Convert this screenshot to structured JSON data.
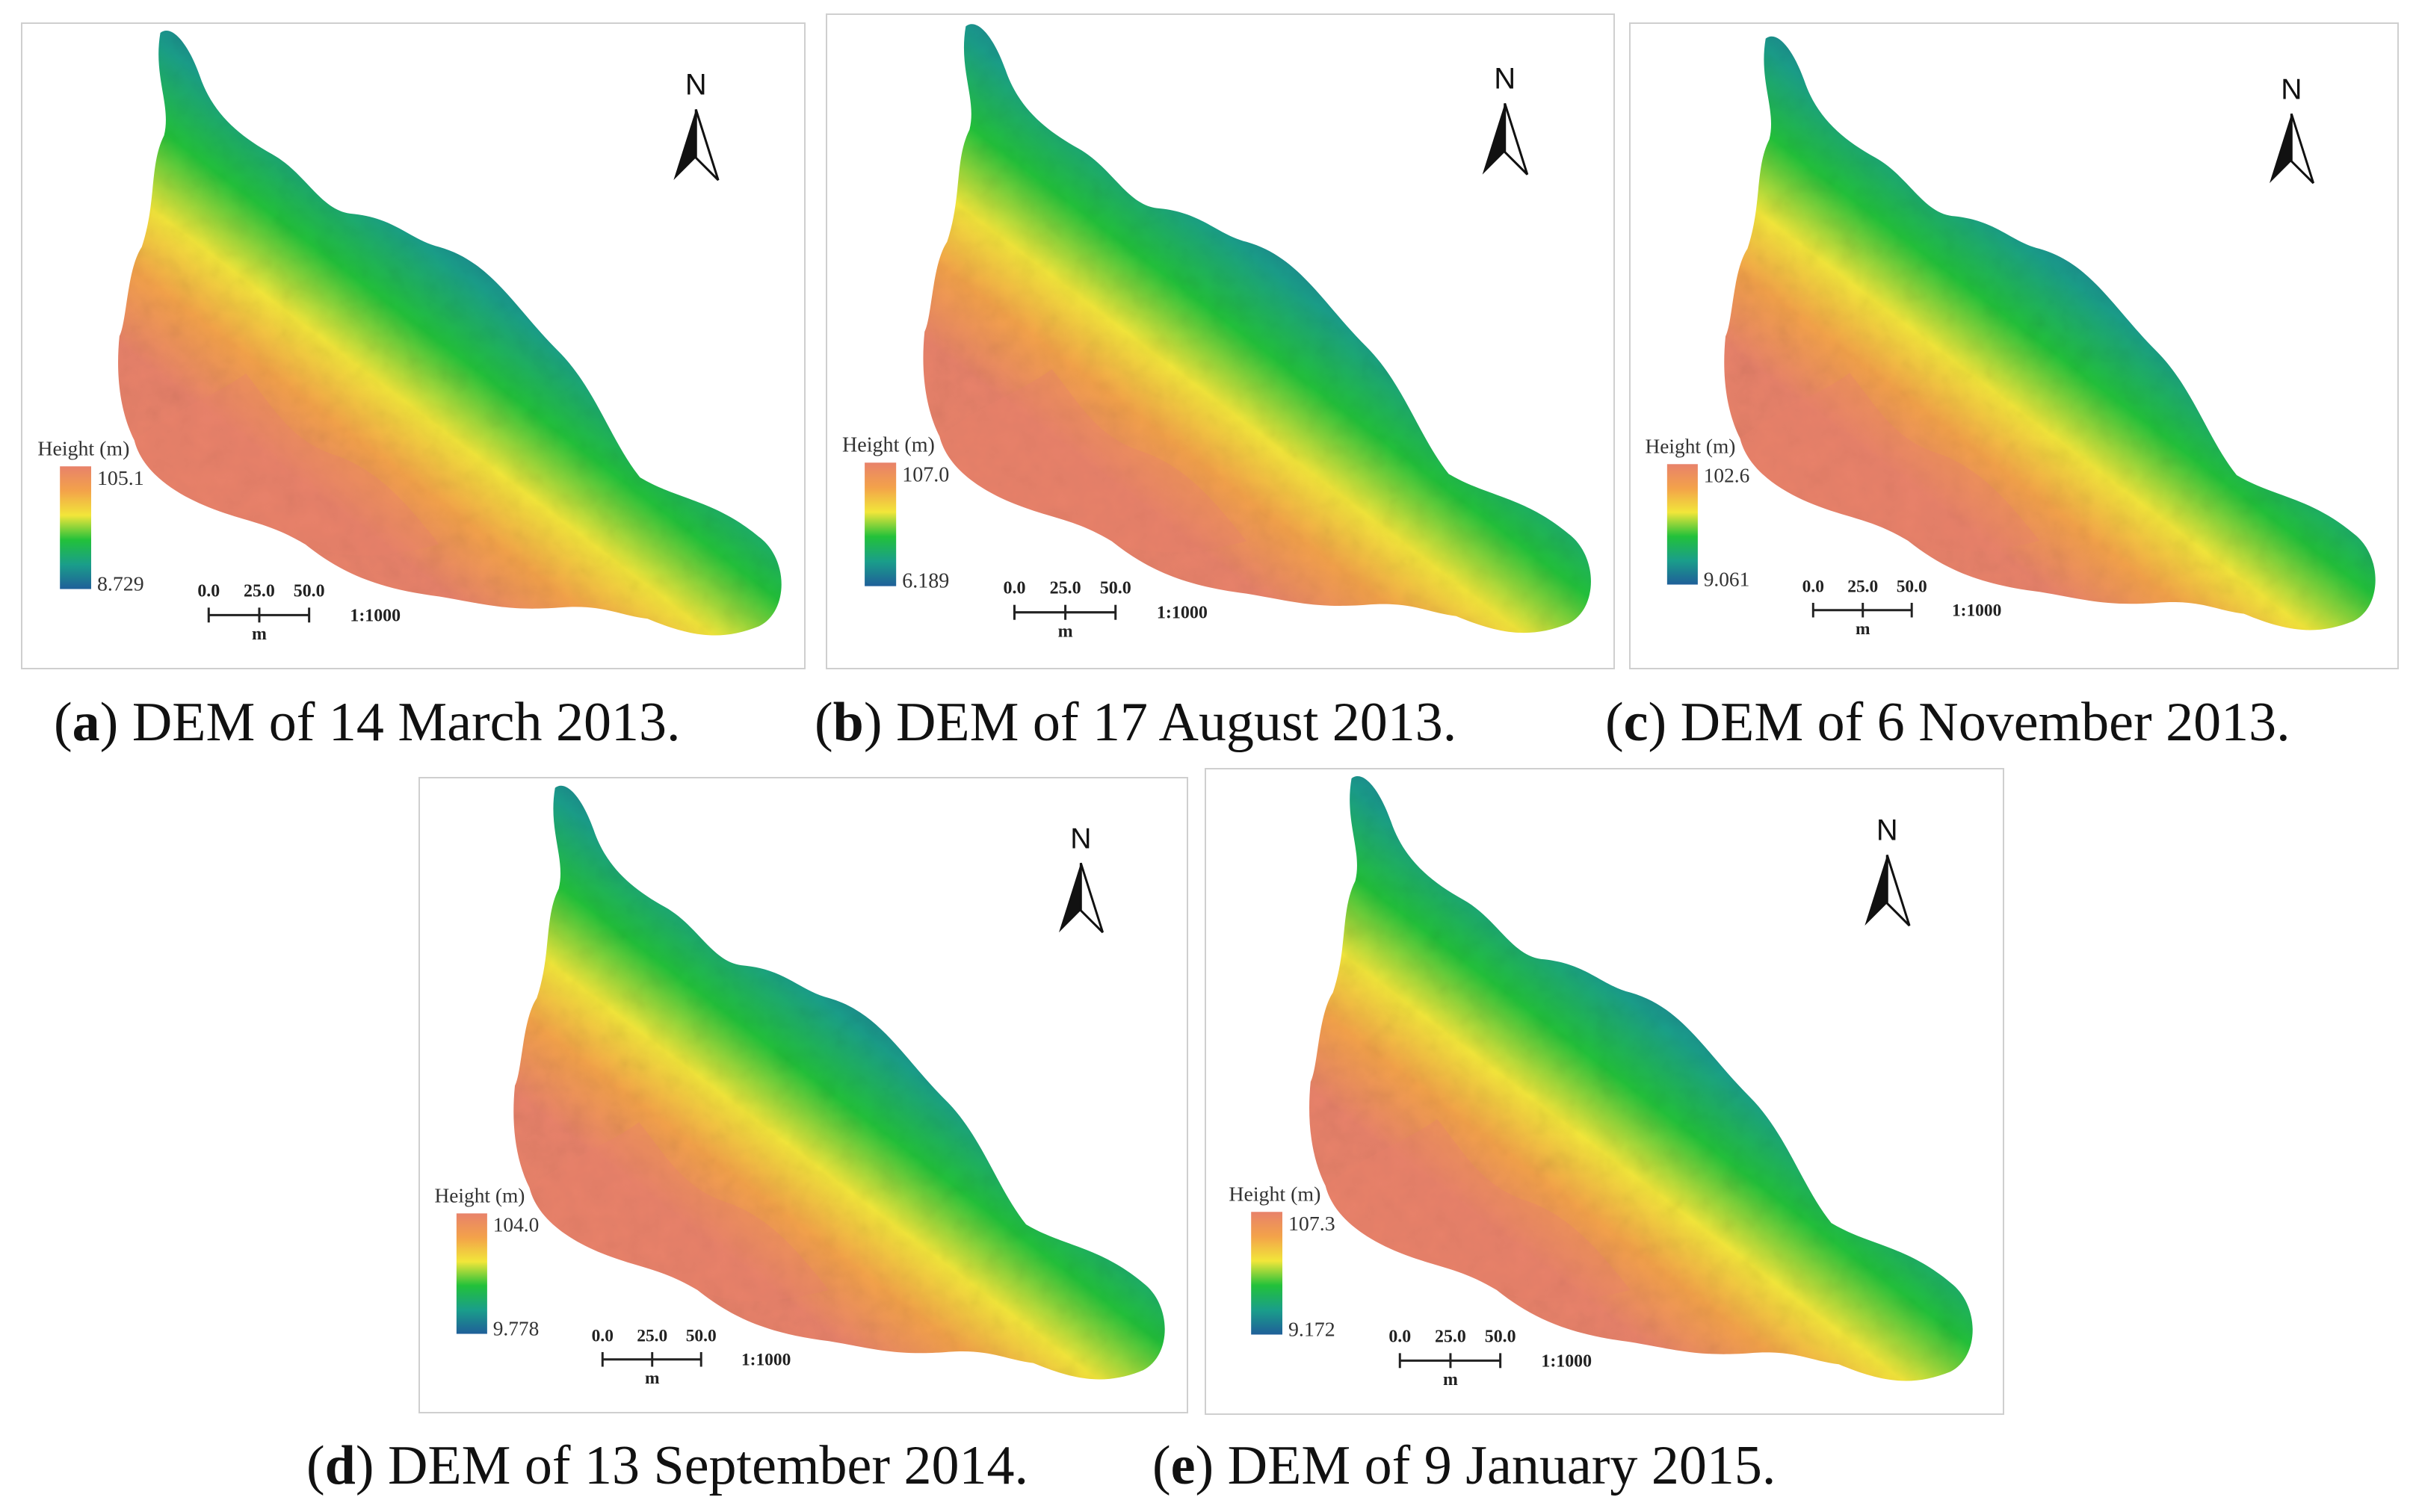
{
  "panels": [
    {
      "letter": "a",
      "caption_text": "DEM of 14 March 2013.",
      "legend_title": "Height (m)",
      "max": "105.1",
      "min": "8.729",
      "scale_ticks": [
        "0.0",
        "25.0",
        "50.0"
      ],
      "scale_unit": "m",
      "ratio": "1:1000",
      "north": "N"
    },
    {
      "letter": "b",
      "caption_text": "DEM of 17 August 2013.",
      "legend_title": "Height (m)",
      "max": "107.0",
      "min": "6.189",
      "scale_ticks": [
        "0.0",
        "25.0",
        "50.0"
      ],
      "scale_unit": "m",
      "ratio": "1:1000",
      "north": "N"
    },
    {
      "letter": "c",
      "caption_text": "DEM of 6 November 2013.",
      "legend_title": "Height (m)",
      "max": "102.6",
      "min": "9.061",
      "scale_ticks": [
        "0.0",
        "25.0",
        "50.0"
      ],
      "scale_unit": "m",
      "ratio": "1:1000",
      "north": "N"
    },
    {
      "letter": "d",
      "caption_text": "DEM of 13 September 2014.",
      "legend_title": "Height (m)",
      "max": "104.0",
      "min": "9.778",
      "scale_ticks": [
        "0.0",
        "25.0",
        "50.0"
      ],
      "scale_unit": "m",
      "ratio": "1:1000",
      "north": "N"
    },
    {
      "letter": "e",
      "caption_text": "DEM of 9 January 2015.",
      "legend_title": "Height (m)",
      "max": "107.3",
      "min": "9.172",
      "scale_ticks": [
        "0.0",
        "25.0",
        "50.0"
      ],
      "scale_unit": "m",
      "ratio": "1:1000",
      "north": "N"
    }
  ],
  "colors": {
    "ramp_high": "#e8826a",
    "ramp_orange": "#f3a24a",
    "ramp_yellow": "#f2e63a",
    "ramp_green": "#22c13a",
    "ramp_teal": "#1a9e8a",
    "ramp_low": "#1f5f99"
  }
}
